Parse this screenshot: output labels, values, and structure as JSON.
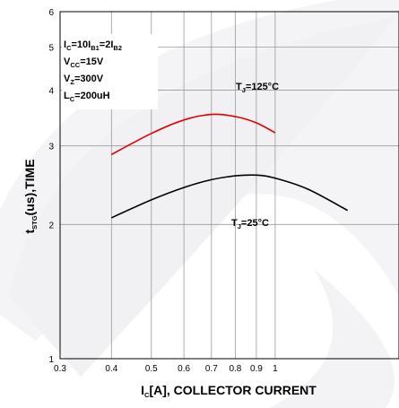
{
  "chart_data": {
    "type": "line",
    "title": "",
    "xlabel": "I_C[A], COLLECTOR CURRENT",
    "ylabel": "t_STG(us),TIME",
    "x_scale": "log",
    "y_scale": "log",
    "xlim": [
      0.3,
      2
    ],
    "ylim": [
      1,
      6
    ],
    "x_tick_labels": [
      "0.3",
      "0.4",
      "0.5",
      "0.6",
      "0.7",
      "0.8",
      "0.9",
      "1"
    ],
    "x_tick_values": [
      0.3,
      0.4,
      0.5,
      0.6,
      0.7,
      0.8,
      0.9,
      1
    ],
    "y_tick_labels": [
      "1",
      "2",
      "3",
      "4",
      "5",
      "6"
    ],
    "y_tick_values": [
      1,
      2,
      3,
      4,
      5,
      6
    ],
    "grid": true,
    "conditions": [
      {
        "main": "I",
        "sub": "C",
        "main2": "=10I",
        "sub2": "B1",
        "main3": "=2I",
        "sub3": "B2"
      },
      {
        "main": "V",
        "sub": "CC",
        "main2": "=15V"
      },
      {
        "main": "V",
        "sub": "Z",
        "main2": "=300V"
      },
      {
        "main": "L",
        "sub": "C",
        "main2": "=200uH"
      }
    ],
    "series": [
      {
        "label": "T_J=125°C",
        "label_main": "T",
        "label_sub": "J",
        "label_rest": "=125°C",
        "color": "#e00000",
        "x": [
          0.4,
          0.5,
          0.6,
          0.7,
          0.8,
          0.9,
          1.0
        ],
        "y": [
          2.87,
          3.2,
          3.43,
          3.53,
          3.49,
          3.38,
          3.21
        ]
      },
      {
        "label": "T_J=25°C",
        "label_main": "T",
        "label_sub": "J",
        "label_rest": "=25°C",
        "color": "#000000",
        "x": [
          0.4,
          0.5,
          0.6,
          0.7,
          0.8,
          0.9,
          1.0,
          1.2,
          1.5
        ],
        "y": [
          2.07,
          2.27,
          2.42,
          2.52,
          2.57,
          2.58,
          2.54,
          2.4,
          2.15
        ]
      }
    ]
  }
}
